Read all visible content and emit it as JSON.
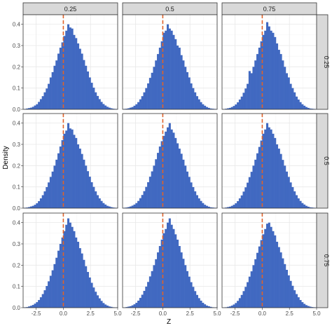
{
  "chart_data": {
    "type": "histogram-facet-grid",
    "xlabel": "Z",
    "ylabel": "Density",
    "col_labels": [
      "0.25",
      "0.5",
      "0.75"
    ],
    "row_labels": [
      "0.25",
      "0.5",
      "0.75"
    ],
    "xlim": [
      -3.7,
      5.0
    ],
    "ylim": [
      0,
      0.445
    ],
    "x_ticks": [
      -2.5,
      0.0,
      2.5,
      5.0
    ],
    "x_tick_labels": [
      "-2.5",
      "0.0",
      "2.5",
      "5.0"
    ],
    "y_ticks": [
      0.0,
      0.1,
      0.2,
      0.3,
      0.4
    ],
    "y_tick_labels": [
      "0.0",
      "0.1",
      "0.2",
      "0.3",
      "0.4"
    ],
    "reference_line_x": 0,
    "bin_width": 0.18,
    "bin_start": -3.6,
    "bar_color": "#4169c1",
    "ref_line_color": "#e0622a",
    "grid": true,
    "panels": [
      {
        "row": 0,
        "col": 0,
        "density": [
          0.002,
          0.004,
          0.006,
          0.008,
          0.012,
          0.018,
          0.024,
          0.035,
          0.048,
          0.062,
          0.08,
          0.098,
          0.12,
          0.15,
          0.175,
          0.205,
          0.23,
          0.262,
          0.29,
          0.315,
          0.345,
          0.37,
          0.4,
          0.385,
          0.38,
          0.35,
          0.335,
          0.31,
          0.285,
          0.262,
          0.232,
          0.205,
          0.178,
          0.15,
          0.125,
          0.102,
          0.08,
          0.063,
          0.048,
          0.035,
          0.025,
          0.018,
          0.012,
          0.008,
          0.005,
          0.003,
          0.002,
          0.001
        ]
      },
      {
        "row": 0,
        "col": 1,
        "density": [
          0.002,
          0.003,
          0.005,
          0.008,
          0.011,
          0.017,
          0.024,
          0.034,
          0.047,
          0.062,
          0.08,
          0.1,
          0.122,
          0.148,
          0.172,
          0.2,
          0.23,
          0.26,
          0.29,
          0.32,
          0.36,
          0.37,
          0.4,
          0.38,
          0.37,
          0.35,
          0.33,
          0.3,
          0.29,
          0.255,
          0.23,
          0.2,
          0.175,
          0.15,
          0.122,
          0.1,
          0.08,
          0.062,
          0.047,
          0.034,
          0.024,
          0.017,
          0.011,
          0.007,
          0.004,
          0.003,
          0.002,
          0.001
        ]
      },
      {
        "row": 0,
        "col": 2,
        "density": [
          0.001,
          0.003,
          0.005,
          0.007,
          0.011,
          0.016,
          0.023,
          0.033,
          0.046,
          0.06,
          0.078,
          0.098,
          0.12,
          0.18,
          0.17,
          0.2,
          0.23,
          0.26,
          0.29,
          0.32,
          0.35,
          0.37,
          0.41,
          0.39,
          0.37,
          0.36,
          0.34,
          0.31,
          0.28,
          0.26,
          0.23,
          0.2,
          0.17,
          0.15,
          0.12,
          0.1,
          0.08,
          0.06,
          0.046,
          0.034,
          0.024,
          0.017,
          0.011,
          0.007,
          0.004,
          0.003,
          0.002,
          0.001
        ]
      },
      {
        "row": 1,
        "col": 0,
        "density": [
          0.002,
          0.003,
          0.005,
          0.008,
          0.011,
          0.016,
          0.023,
          0.033,
          0.046,
          0.061,
          0.079,
          0.099,
          0.121,
          0.147,
          0.172,
          0.2,
          0.228,
          0.258,
          0.29,
          0.32,
          0.35,
          0.365,
          0.4,
          0.375,
          0.37,
          0.345,
          0.33,
          0.3,
          0.28,
          0.255,
          0.228,
          0.2,
          0.174,
          0.148,
          0.122,
          0.1,
          0.079,
          0.061,
          0.046,
          0.034,
          0.024,
          0.017,
          0.011,
          0.008,
          0.005,
          0.003,
          0.002,
          0.001
        ]
      },
      {
        "row": 1,
        "col": 1,
        "density": [
          0.002,
          0.003,
          0.005,
          0.008,
          0.012,
          0.017,
          0.024,
          0.034,
          0.047,
          0.062,
          0.08,
          0.1,
          0.122,
          0.148,
          0.173,
          0.2,
          0.23,
          0.26,
          0.29,
          0.315,
          0.34,
          0.36,
          0.38,
          0.4,
          0.37,
          0.355,
          0.33,
          0.305,
          0.28,
          0.256,
          0.228,
          0.2,
          0.172,
          0.147,
          0.121,
          0.099,
          0.079,
          0.061,
          0.046,
          0.034,
          0.024,
          0.016,
          0.011,
          0.007,
          0.004,
          0.003,
          0.002,
          0.001
        ]
      },
      {
        "row": 1,
        "col": 2,
        "density": [
          0.001,
          0.003,
          0.005,
          0.007,
          0.011,
          0.016,
          0.023,
          0.033,
          0.046,
          0.06,
          0.078,
          0.098,
          0.12,
          0.146,
          0.171,
          0.2,
          0.228,
          0.258,
          0.288,
          0.318,
          0.35,
          0.37,
          0.4,
          0.38,
          0.37,
          0.35,
          0.33,
          0.3,
          0.28,
          0.255,
          0.227,
          0.2,
          0.172,
          0.147,
          0.121,
          0.099,
          0.079,
          0.061,
          0.046,
          0.034,
          0.024,
          0.017,
          0.011,
          0.007,
          0.004,
          0.003,
          0.002,
          0.001
        ]
      },
      {
        "row": 2,
        "col": 0,
        "density": [
          0.002,
          0.003,
          0.006,
          0.009,
          0.013,
          0.019,
          0.026,
          0.036,
          0.049,
          0.064,
          0.082,
          0.102,
          0.124,
          0.15,
          0.176,
          0.205,
          0.235,
          0.268,
          0.3,
          0.33,
          0.36,
          0.39,
          0.42,
          0.4,
          0.38,
          0.36,
          0.33,
          0.31,
          0.28,
          0.255,
          0.225,
          0.195,
          0.168,
          0.142,
          0.117,
          0.095,
          0.075,
          0.058,
          0.044,
          0.032,
          0.022,
          0.015,
          0.01,
          0.006,
          0.004,
          0.002,
          0.001,
          0.001
        ]
      },
      {
        "row": 2,
        "col": 1,
        "density": [
          0.001,
          0.003,
          0.005,
          0.007,
          0.011,
          0.016,
          0.023,
          0.033,
          0.046,
          0.061,
          0.079,
          0.099,
          0.121,
          0.147,
          0.172,
          0.2,
          0.228,
          0.26,
          0.29,
          0.32,
          0.35,
          0.37,
          0.4,
          0.42,
          0.39,
          0.37,
          0.345,
          0.32,
          0.29,
          0.26,
          0.23,
          0.2,
          0.172,
          0.146,
          0.12,
          0.098,
          0.078,
          0.06,
          0.045,
          0.033,
          0.023,
          0.016,
          0.01,
          0.007,
          0.004,
          0.002,
          0.001,
          0.001
        ]
      },
      {
        "row": 2,
        "col": 2,
        "density": [
          0.001,
          0.002,
          0.004,
          0.006,
          0.01,
          0.015,
          0.022,
          0.032,
          0.045,
          0.06,
          0.078,
          0.098,
          0.12,
          0.146,
          0.171,
          0.2,
          0.228,
          0.258,
          0.288,
          0.318,
          0.345,
          0.37,
          0.395,
          0.4,
          0.38,
          0.36,
          0.34,
          0.31,
          0.285,
          0.26,
          0.232,
          0.205,
          0.178,
          0.152,
          0.126,
          0.103,
          0.082,
          0.064,
          0.049,
          0.036,
          0.026,
          0.018,
          0.012,
          0.008,
          0.005,
          0.003,
          0.002,
          0.001
        ]
      }
    ]
  }
}
